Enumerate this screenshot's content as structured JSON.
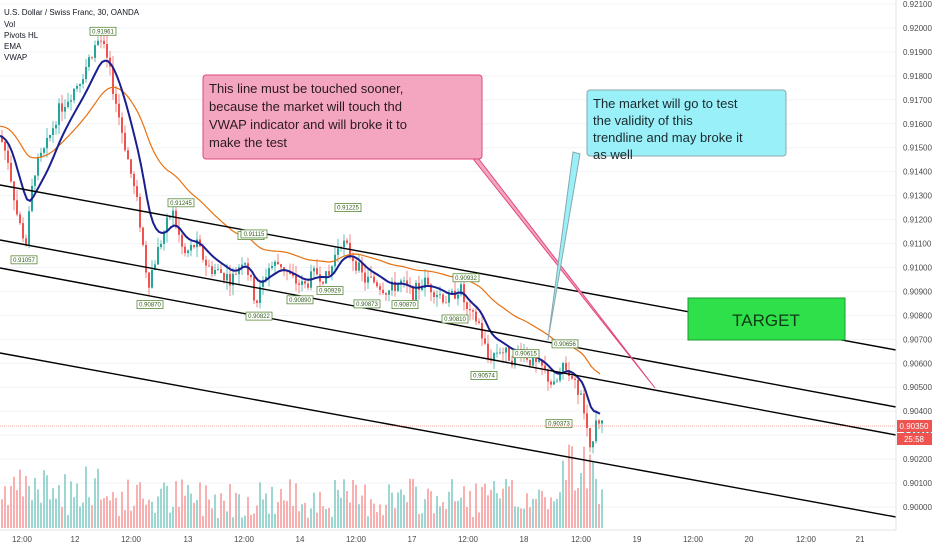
{
  "header": {
    "symbol_line": "U.S. Dollar / Swiss Franc, 30, OANDA",
    "indicators": [
      "Vol",
      "Pivots HL",
      "EMA",
      "VWAP"
    ]
  },
  "chart_data": {
    "type": "candlestick",
    "y_axis": {
      "ticks": [
        "0.92100",
        "0.92000",
        "0.91900",
        "0.91800",
        "0.91700",
        "0.91600",
        "0.91500",
        "0.91400",
        "0.91300",
        "0.91200",
        "0.91100",
        "0.91000",
        "0.90900",
        "0.90800",
        "0.90700",
        "0.90600",
        "0.90500",
        "0.90400",
        "0.90300",
        "0.90200",
        "0.90100",
        "0.90000"
      ],
      "range": [
        0.8995,
        0.9215
      ]
    },
    "x_axis": {
      "ticks": [
        "12:00",
        "12",
        "12:00",
        "13",
        "12:00",
        "14",
        "12:00",
        "17",
        "12:00",
        "18",
        "12:00",
        "19",
        "12:00",
        "20",
        "12:00",
        "21"
      ]
    },
    "last_price": {
      "label": "0.90350",
      "countdown": "25:58",
      "value": 0.9035
    },
    "pivots": [
      {
        "label": "0.91961",
        "value": 0.91961
      },
      {
        "label": "0.91057",
        "value": 0.91057
      },
      {
        "label": "0.91245",
        "value": 0.91245
      },
      {
        "label": "0.90870",
        "value": 0.9087
      },
      {
        "label": "0.91108",
        "value": 0.91108
      },
      {
        "label": "0.91115",
        "value": 0.91115
      },
      {
        "label": "0.90822",
        "value": 0.90822
      },
      {
        "label": "0.90890",
        "value": 0.9089
      },
      {
        "label": "0.91225",
        "value": 0.91225
      },
      {
        "label": "0.90929",
        "value": 0.90929
      },
      {
        "label": "0.90873",
        "value": 0.90873
      },
      {
        "label": "0.90870",
        "value": 0.9087
      },
      {
        "label": "0.90932",
        "value": 0.90932
      },
      {
        "label": "0.90810",
        "value": 0.9081
      },
      {
        "label": "0.90615",
        "value": 0.90615
      },
      {
        "label": "0.90574",
        "value": 0.90574
      },
      {
        "label": "0.90656",
        "value": 0.90656
      },
      {
        "label": "0.90373",
        "value": 0.90373
      }
    ],
    "annotations": [
      {
        "text": "This line must be touched sooner, because the market will touch thd VWAP indicator and will broke it to make the test",
        "color": "#f4a6c0"
      },
      {
        "text": "The market will go to test the validity of this trendline and may broke it as well",
        "color": "#99f0f8"
      },
      {
        "text": "TARGET",
        "color": "#2ee04a"
      }
    ],
    "colors": {
      "up": "#26a69a",
      "down": "#ef5350",
      "vwap": "#1a1f8f",
      "ema": "#e8700f",
      "trend": "#000000",
      "pink": "#e0487a",
      "cyan": "#9ab3b8"
    }
  }
}
